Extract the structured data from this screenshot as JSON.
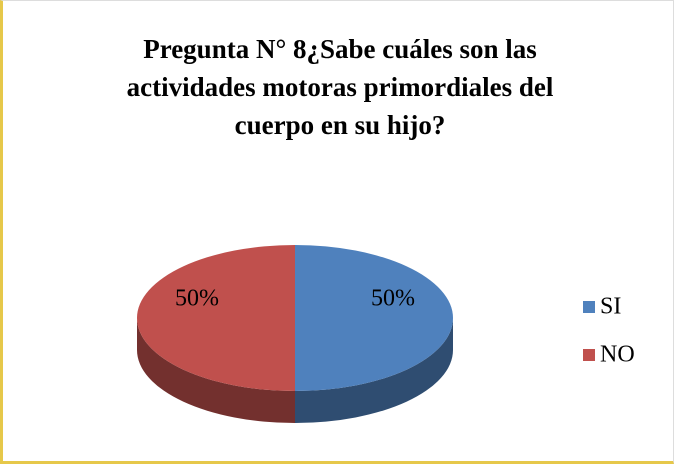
{
  "chart_data": {
    "type": "pie",
    "title": "Pregunta N° 8¿Sabe cuáles son las actividades motoras primordiales del cuerpo en su hijo?",
    "categories": [
      "SI",
      "NO"
    ],
    "values": [
      50,
      50
    ],
    "value_labels": [
      "50%",
      "50%"
    ],
    "colors": [
      "#4f81bd",
      "#c0504d"
    ],
    "legend": "right"
  }
}
